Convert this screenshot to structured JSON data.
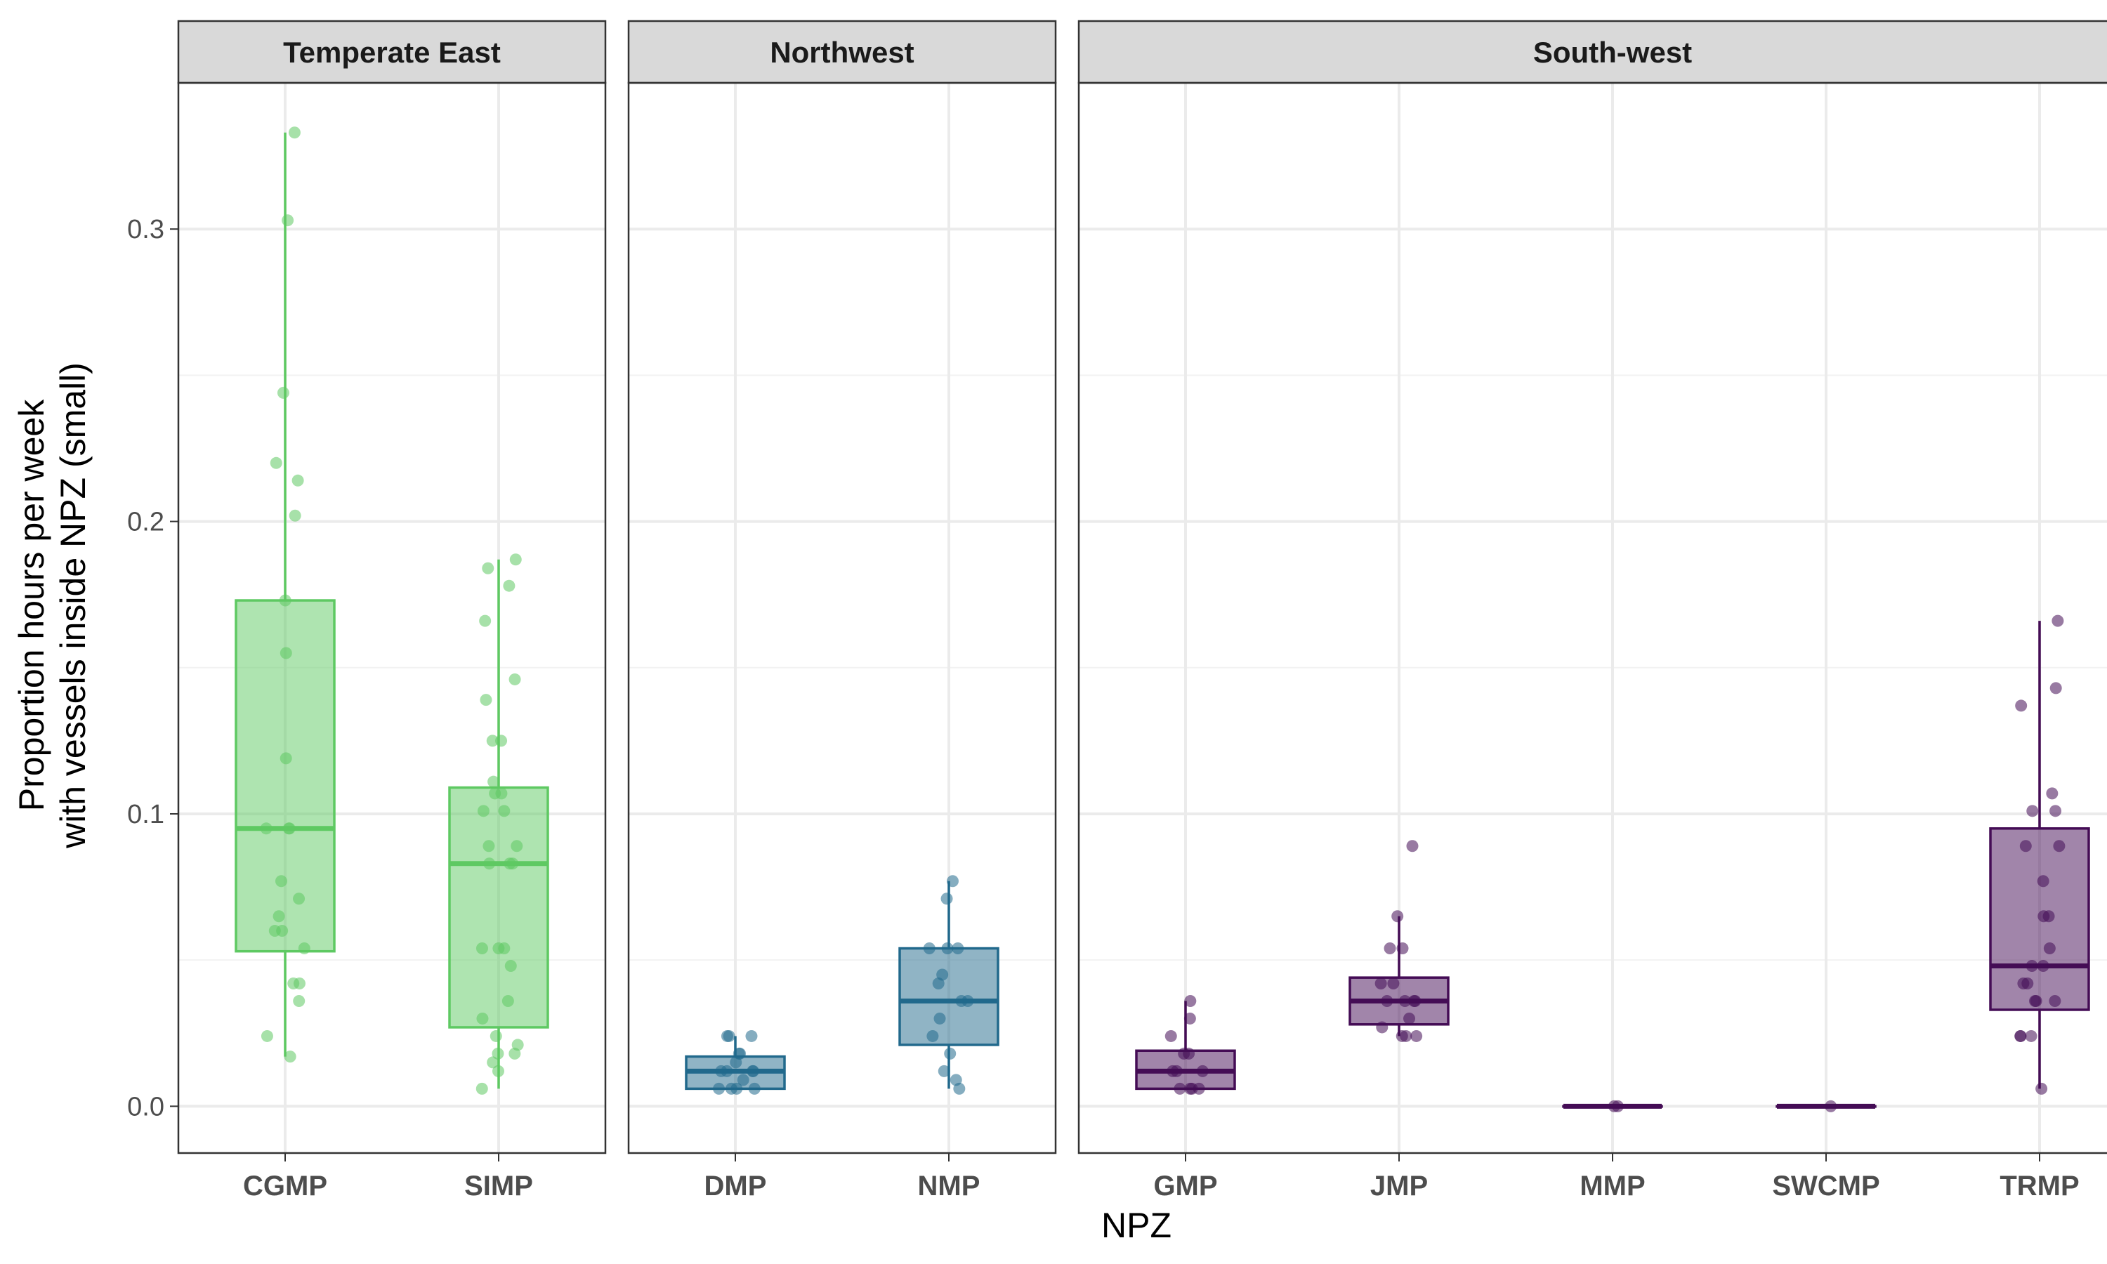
{
  "chart_data": {
    "type": "boxplot",
    "xlabel": "NPZ",
    "ylabel_lines": [
      "Proportion hours per week",
      "with vessels inside NPZ (small)"
    ],
    "ylim": [
      -0.016,
      0.35
    ],
    "y_ticks": [
      0.0,
      0.1,
      0.2,
      0.3
    ],
    "y_tick_labels": [
      "0.0",
      "0.1",
      "0.2",
      "0.3"
    ],
    "grid": true,
    "facets": [
      {
        "name": "Temperate East",
        "color": "#5ec962",
        "groups": [
          {
            "name": "CGMP",
            "box": {
              "q1": 0.053,
              "median": 0.095,
              "q3": 0.173,
              "whisker_low": 0.017,
              "whisker_high": 0.333
            },
            "points": [
              0.333,
              0.303,
              0.244,
              0.22,
              0.214,
              0.202,
              0.173,
              0.155,
              0.119,
              0.095,
              0.095,
              0.095,
              0.077,
              0.071,
              0.065,
              0.06,
              0.06,
              0.054,
              0.042,
              0.042,
              0.036,
              0.024,
              0.017
            ]
          },
          {
            "name": "SIMP",
            "box": {
              "q1": 0.027,
              "median": 0.083,
              "q3": 0.109,
              "whisker_low": 0.006,
              "whisker_high": 0.187
            },
            "points": [
              0.187,
              0.184,
              0.178,
              0.166,
              0.146,
              0.139,
              0.125,
              0.125,
              0.111,
              0.107,
              0.107,
              0.101,
              0.101,
              0.089,
              0.089,
              0.083,
              0.083,
              0.083,
              0.054,
              0.054,
              0.054,
              0.048,
              0.036,
              0.03,
              0.024,
              0.021,
              0.018,
              0.018,
              0.015,
              0.012,
              0.006
            ]
          }
        ]
      },
      {
        "name": "Northwest",
        "color": "#21698c",
        "groups": [
          {
            "name": "DMP",
            "box": {
              "q1": 0.006,
              "median": 0.012,
              "q3": 0.017,
              "whisker_low": 0.006,
              "whisker_high": 0.024
            },
            "points": [
              0.024,
              0.024,
              0.024,
              0.018,
              0.018,
              0.015,
              0.012,
              0.012,
              0.012,
              0.012,
              0.009,
              0.006,
              0.006,
              0.006,
              0.006
            ]
          },
          {
            "name": "NMP",
            "box": {
              "q1": 0.021,
              "median": 0.036,
              "q3": 0.054,
              "whisker_low": 0.006,
              "whisker_high": 0.077
            },
            "points": [
              0.077,
              0.071,
              0.054,
              0.054,
              0.054,
              0.045,
              0.042,
              0.036,
              0.036,
              0.03,
              0.024,
              0.018,
              0.012,
              0.009,
              0.006
            ]
          }
        ]
      },
      {
        "name": "South-west",
        "color": "#440c55",
        "groups": [
          {
            "name": "GMP",
            "box": {
              "q1": 0.006,
              "median": 0.012,
              "q3": 0.019,
              "whisker_low": 0.006,
              "whisker_high": 0.036
            },
            "points": [
              0.036,
              0.03,
              0.024,
              0.018,
              0.018,
              0.012,
              0.012,
              0.012,
              0.006,
              0.006,
              0.006,
              0.006
            ]
          },
          {
            "name": "JMP",
            "box": {
              "q1": 0.028,
              "median": 0.036,
              "q3": 0.044,
              "whisker_low": 0.024,
              "whisker_high": 0.065
            },
            "points": [
              0.089,
              0.065,
              0.054,
              0.054,
              0.042,
              0.042,
              0.036,
              0.036,
              0.036,
              0.036,
              0.03,
              0.027,
              0.024,
              0.024,
              0.024
            ]
          },
          {
            "name": "MMP",
            "box": {
              "q1": 0.0,
              "median": 0.0,
              "q3": 0.0,
              "whisker_low": 0.0,
              "whisker_high": 0.0
            },
            "points": [
              0.0,
              0.0
            ]
          },
          {
            "name": "SWCMP",
            "box": {
              "q1": 0.0,
              "median": 0.0,
              "q3": 0.0,
              "whisker_low": 0.0,
              "whisker_high": 0.0
            },
            "points": [
              0.0
            ]
          },
          {
            "name": "TRMP",
            "box": {
              "q1": 0.033,
              "median": 0.048,
              "q3": 0.095,
              "whisker_low": 0.006,
              "whisker_high": 0.166
            },
            "points": [
              0.166,
              0.143,
              0.137,
              0.107,
              0.101,
              0.101,
              0.089,
              0.089,
              0.077,
              0.065,
              0.065,
              0.054,
              0.048,
              0.048,
              0.042,
              0.042,
              0.036,
              0.036,
              0.036,
              0.024,
              0.024,
              0.024,
              0.006
            ]
          }
        ]
      }
    ]
  }
}
